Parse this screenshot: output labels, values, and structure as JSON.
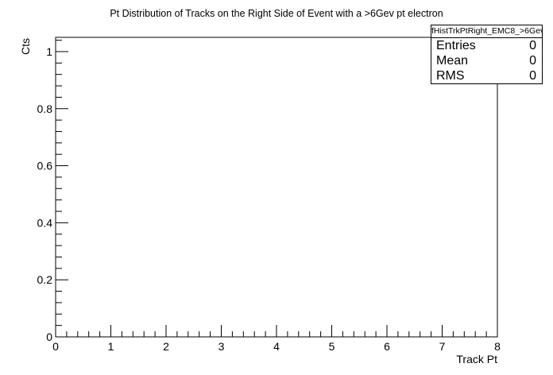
{
  "chart_data": {
    "type": "bar",
    "title": "Pt Distribution of Tracks on the Right Side of Event with a >6Gev pt electron",
    "xlabel": "Track Pt",
    "ylabel": "Cts",
    "xlim": [
      0,
      8
    ],
    "ylim": [
      0,
      1.05
    ],
    "x_ticks": [
      "0",
      "1",
      "2",
      "3",
      "4",
      "5",
      "6",
      "7",
      "8"
    ],
    "y_ticks": [
      "0",
      "0.2",
      "0.4",
      "0.6",
      "0.8",
      "1"
    ],
    "series": [],
    "grid": false,
    "legend": "none"
  },
  "stats": {
    "name": "fHistTrkPtRight_EMC8_>6Gev",
    "rows": [
      {
        "label": "Entries",
        "value": "0"
      },
      {
        "label": "Mean",
        "value": "0"
      },
      {
        "label": "RMS",
        "value": "0"
      }
    ]
  }
}
